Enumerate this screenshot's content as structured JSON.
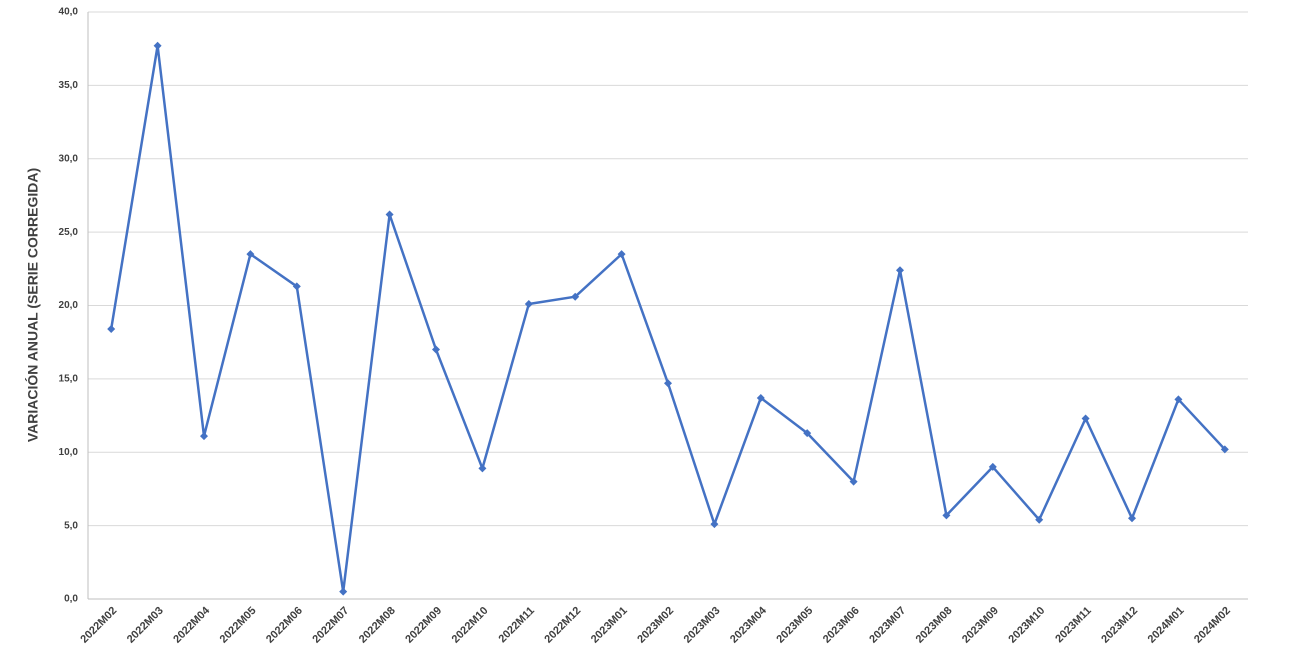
{
  "chart_data": {
    "type": "line",
    "y_label": "VARIACIÓN ANUAL (SERIE CORREGIDA)",
    "categories": [
      "2022M02",
      "2022M03",
      "2022M04",
      "2022M05",
      "2022M06",
      "2022M07",
      "2022M08",
      "2022M09",
      "2022M10",
      "2022M11",
      "2022M12",
      "2023M01",
      "2023M02",
      "2023M03",
      "2023M04",
      "2023M05",
      "2023M06",
      "2023M07",
      "2023M08",
      "2023M09",
      "2023M10",
      "2023M11",
      "2023M12",
      "2024M01",
      "2024M02"
    ],
    "series": [
      {
        "color": "#4472c4",
        "values": [
          18.4,
          37.7,
          11.1,
          23.5,
          21.3,
          0.5,
          26.2,
          17.0,
          8.9,
          20.1,
          20.6,
          23.5,
          14.7,
          5.1,
          13.7,
          11.3,
          8.0,
          22.4,
          5.7,
          9.0,
          5.4,
          12.3,
          5.5,
          13.6,
          10.2
        ]
      }
    ],
    "ylim": [
      0,
      40
    ],
    "yticks": [
      {
        "value": 0,
        "label": "0,0"
      },
      {
        "value": 5,
        "label": "5,0"
      },
      {
        "value": 10,
        "label": "10,0"
      },
      {
        "value": 15,
        "label": "15,0"
      },
      {
        "value": 20,
        "label": "20,0"
      },
      {
        "value": 25,
        "label": "25,0"
      },
      {
        "value": 30,
        "label": "30,0"
      },
      {
        "value": 35,
        "label": "35,0"
      },
      {
        "value": 40,
        "label": "40,0"
      }
    ],
    "grid": true
  }
}
